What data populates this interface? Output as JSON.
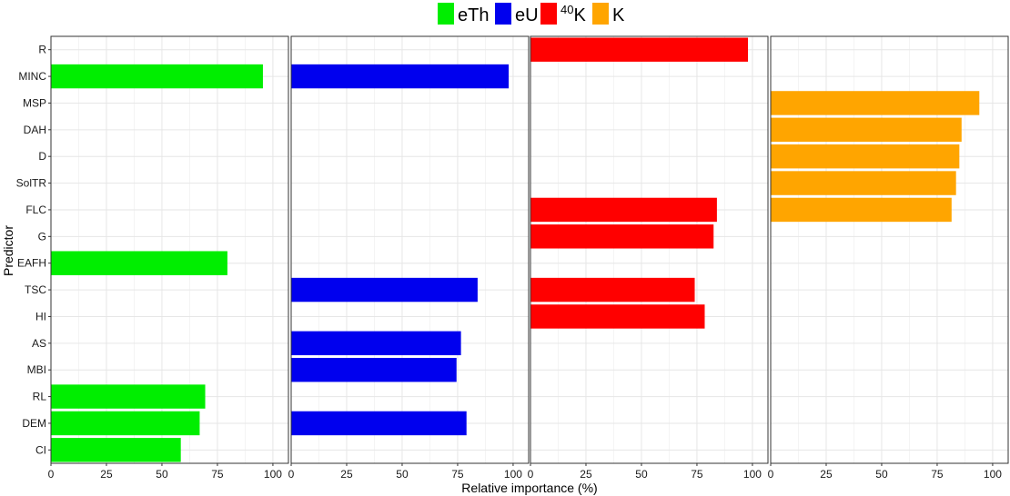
{
  "chart_data": {
    "type": "bar",
    "orientation": "horizontal",
    "xlabel": "Relative importance (%)",
    "ylabel": "Predictor",
    "xlim": [
      0,
      107
    ],
    "x_ticks": [
      0,
      25,
      50,
      75,
      100
    ],
    "grid": true,
    "legend_position": "top",
    "categories": [
      "R",
      "MINC",
      "MSP",
      "DAH",
      "D",
      "SolTR",
      "FLC",
      "G",
      "EAFH",
      "TSC",
      "HI",
      "AS",
      "MBI",
      "RL",
      "DEM",
      "CI"
    ],
    "series": [
      {
        "name": "eTh",
        "color": "#00ee00",
        "values": [
          null,
          95.5,
          null,
          null,
          null,
          null,
          null,
          null,
          79.5,
          null,
          null,
          null,
          null,
          69.5,
          67,
          58.5
        ]
      },
      {
        "name": "eU",
        "color": "#0000ee",
        "values": [
          null,
          98,
          null,
          null,
          null,
          null,
          null,
          null,
          null,
          84,
          null,
          76.5,
          74.5,
          null,
          79,
          null
        ]
      },
      {
        "name": "40K",
        "name_sup": "40",
        "name_base": "K",
        "color": "#ff0000",
        "values": [
          98,
          null,
          null,
          null,
          null,
          null,
          84,
          82.5,
          null,
          74,
          78.5,
          null,
          null,
          null,
          null,
          null
        ]
      },
      {
        "name": "K",
        "color": "#ffa500",
        "values": [
          null,
          null,
          94,
          86,
          85,
          83.5,
          81.5,
          null,
          null,
          null,
          null,
          null,
          null,
          null,
          null,
          null
        ]
      }
    ]
  }
}
